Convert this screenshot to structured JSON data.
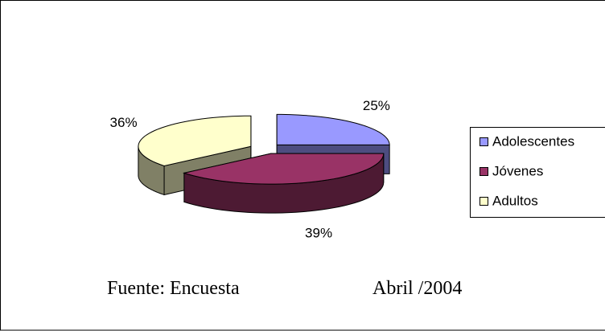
{
  "chart_data": {
    "type": "pie3d",
    "categories": [
      "Adolescentes",
      "Jóvenes",
      "Adultos"
    ],
    "values": [
      25,
      39,
      36
    ],
    "value_labels": [
      "25%",
      "39%",
      "36%"
    ],
    "colors": [
      "#9999ff",
      "#993366",
      "#ffffcc"
    ],
    "legend": "right",
    "annotations": [
      "Fuente: Encuesta",
      "Abril /2004"
    ]
  }
}
